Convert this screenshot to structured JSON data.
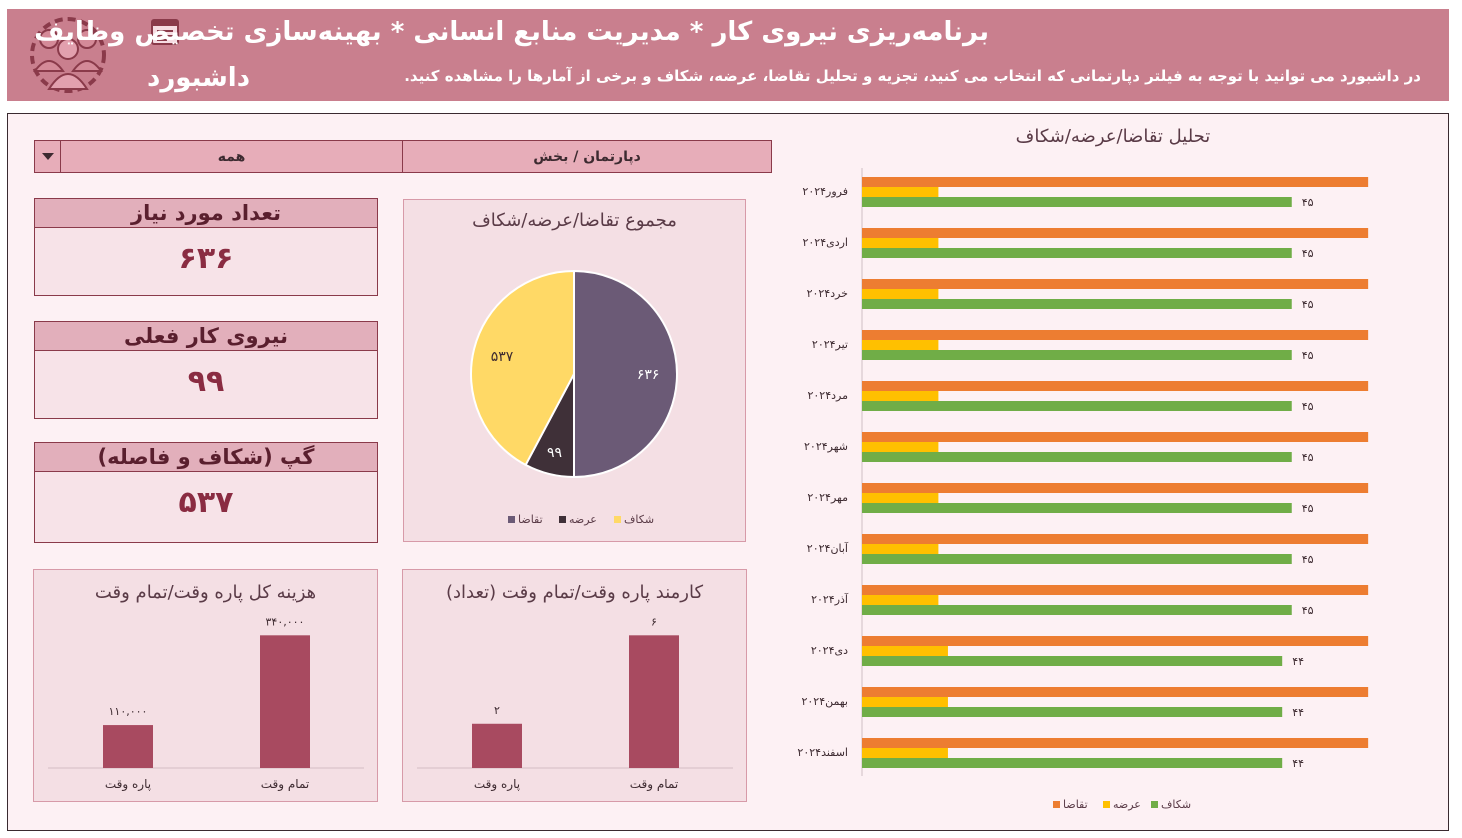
{
  "header": {
    "title": "برنامه‌ریزی نیروی کار * مدیریت منابع انسانی * بهینه‌سازی تخصیص وظایف",
    "dashboard_label": "داشبورد",
    "subtitle": "در داشبورد می توانید با توجه به فیلتر دپارتمانی که انتخاب می کنید، تجزیه و تحلیل تقاضا، عرضه، شکاف و برخی از آمارها را مشاهده کنید."
  },
  "filter": {
    "label": "دپارتمان / بخش",
    "value": "همه"
  },
  "kpis": [
    {
      "label": "تعداد مورد نیاز",
      "value": "۶۳۶"
    },
    {
      "label": "نیروی کار فعلی",
      "value": "۹۹"
    },
    {
      "label": "گپ (شکاف و فاصله)",
      "value": "۵۳۷"
    }
  ],
  "colors": {
    "header_bg": "#c97f8e",
    "accent": "#8a2c42",
    "demand": "#ed7d31",
    "supply": "#ffc000",
    "gap": "#70ad47",
    "pie_demand": "#6b5a76",
    "pie_supply": "#3f3038",
    "pie_gap": "#ffd966",
    "bar_fill": "#a84a60"
  },
  "chart_data": [
    {
      "type": "pie",
      "title": "مجموع تقاضا/عرضه/شکاف",
      "categories": [
        "تقاضا",
        "عرضه",
        "شکاف"
      ],
      "values": [
        636,
        99,
        537
      ],
      "value_labels": [
        "۶۳۶",
        "۹۹",
        "۵۳۷"
      ],
      "legend": "bottom"
    },
    {
      "type": "bar",
      "title": "هزینه کل پاره وقت/تمام وقت",
      "categories": [
        "پاره وقت",
        "تمام وقت"
      ],
      "values": [
        110000,
        340000
      ],
      "value_labels": [
        "۱۱۰,۰۰۰",
        "۳۴۰,۰۰۰"
      ]
    },
    {
      "type": "bar",
      "title": "کارمند پاره وقت/تمام وقت (تعداد)",
      "categories": [
        "پاره وقت",
        "تمام وقت"
      ],
      "values": [
        2,
        6
      ],
      "value_labels": [
        "۲",
        "۶"
      ]
    },
    {
      "type": "bar",
      "orientation": "horizontal",
      "title": "تحلیل تقاضا/عرضه/شکاف",
      "categories": [
        "فرور۲۰۲۴",
        "اردی۲۰۲۴",
        "خرد۲۰۲۴",
        "تیر۲۰۲۴",
        "مرد۲۰۲۴",
        "شهر۲۰۲۴",
        "مهر۲۰۲۴",
        "آبان۲۰۲۴",
        "آذر۲۰۲۴",
        "دی۲۰۲۴",
        "بهمن۲۰۲۴",
        "اسفند۲۰۲۴"
      ],
      "series": [
        {
          "name": "تقاضا",
          "values": [
            53,
            53,
            53,
            53,
            53,
            53,
            53,
            53,
            53,
            53,
            53,
            53
          ]
        },
        {
          "name": "عرضه",
          "values": [
            8,
            8,
            8,
            8,
            8,
            8,
            8,
            8,
            8,
            9,
            9,
            9
          ]
        },
        {
          "name": "شکاف",
          "values": [
            45,
            45,
            45,
            45,
            45,
            45,
            45,
            45,
            45,
            44,
            44,
            44
          ]
        }
      ],
      "gap_labels": [
        "۴۵",
        "۴۵",
        "۴۵",
        "۴۵",
        "۴۵",
        "۴۵",
        "۴۵",
        "۴۵",
        "۴۵",
        "۴۴",
        "۴۴",
        "۴۴"
      ],
      "legend": "bottom"
    }
  ]
}
